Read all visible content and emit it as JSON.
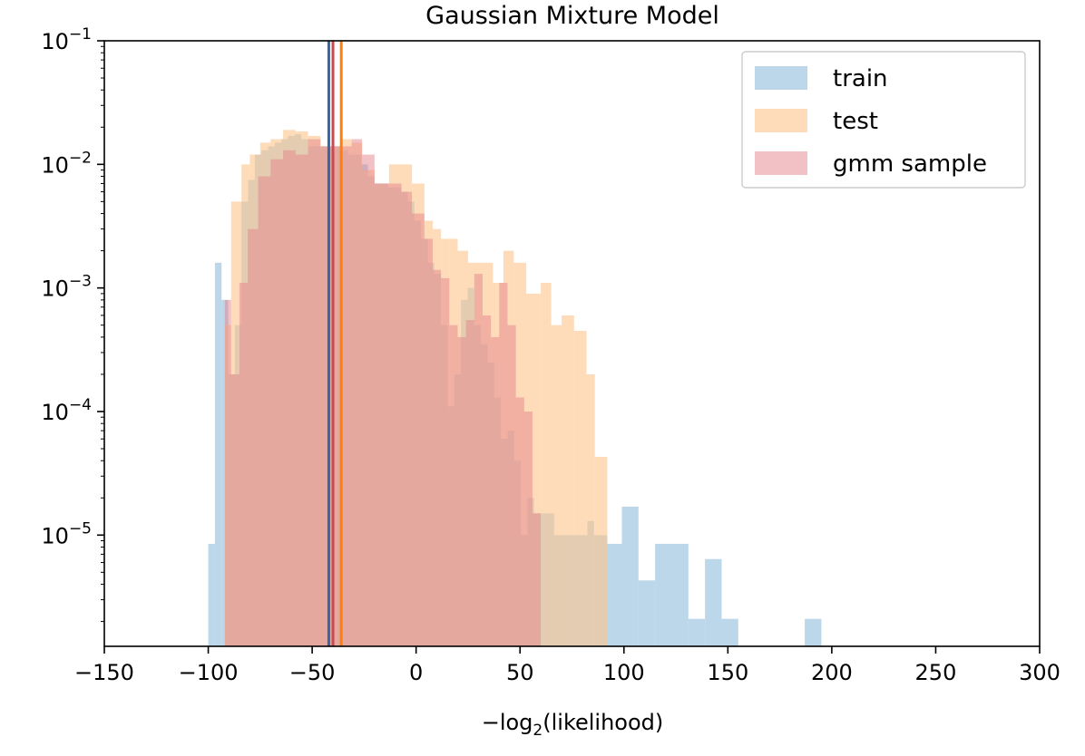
{
  "chart_data": {
    "type": "bar",
    "title": "Gaussian Mixture Model",
    "xlabel_prefix": "−log",
    "xlabel_sub": "2",
    "xlabel_suffix": "(likelihood)",
    "xlim": [
      -150,
      300
    ],
    "ylim_log10": [
      -5.9,
      -1
    ],
    "log_scale_y": true,
    "grid": false,
    "legend_position": "top-right",
    "x_ticks": [
      -150,
      -100,
      -50,
      0,
      50,
      100,
      150,
      200,
      250,
      300
    ],
    "x_tick_labels": [
      "−150",
      "−100",
      "−50",
      "0",
      "50",
      "100",
      "150",
      "200",
      "250",
      "300"
    ],
    "y_ticks": [
      {
        "base": "10",
        "exp": "−1",
        "value": -1
      },
      {
        "base": "10",
        "exp": "−2",
        "value": -2
      },
      {
        "base": "10",
        "exp": "−3",
        "value": -3
      },
      {
        "base": "10",
        "exp": "−4",
        "value": -4
      },
      {
        "base": "10",
        "exp": "−5",
        "value": -5
      }
    ],
    "series": [
      {
        "name": "train",
        "color": "#a6c9e3",
        "opacity": 0.75,
        "line_color": "#3a64a8",
        "line_x": -42,
        "bins": [
          [
            -100,
            -96.8,
            8.5e-06
          ],
          [
            -96.8,
            -93.6,
            0.0016
          ],
          [
            -93.6,
            -90.4,
            0.0008
          ],
          [
            -90.4,
            -87.2,
            0.0002
          ],
          [
            -87.2,
            -84.0,
            0.0005
          ],
          [
            -84.0,
            -80.8,
            0.005
          ],
          [
            -80.8,
            -77.6,
            0.0075
          ],
          [
            -77.6,
            -74.4,
            0.012
          ],
          [
            -74.4,
            -71.2,
            0.013
          ],
          [
            -71.2,
            -68.0,
            0.014
          ],
          [
            -68.0,
            -64.8,
            0.015
          ],
          [
            -64.8,
            -61.6,
            0.016
          ],
          [
            -61.6,
            -58.4,
            0.017
          ],
          [
            -58.4,
            -55.2,
            0.0175
          ],
          [
            -55.2,
            -52.0,
            0.016
          ],
          [
            -52.0,
            -48.8,
            0.014
          ],
          [
            -48.8,
            -45.6,
            0.014
          ],
          [
            -45.6,
            -42.4,
            0.014
          ],
          [
            -42.4,
            -39.2,
            0.014
          ],
          [
            -39.2,
            -36.0,
            0.014
          ],
          [
            -36.0,
            -32.8,
            0.013
          ],
          [
            -32.8,
            -29.6,
            0.012
          ],
          [
            -29.6,
            -26.4,
            0.012
          ],
          [
            -26.4,
            -23.2,
            0.01
          ],
          [
            -23.2,
            -20.0,
            0.008
          ],
          [
            -20.0,
            -16.8,
            0.007
          ],
          [
            -16.8,
            -13.6,
            0.007
          ],
          [
            -13.6,
            -10.4,
            0.0065
          ],
          [
            -10.4,
            -7.2,
            0.0065
          ],
          [
            -7.2,
            -4.0,
            0.006
          ],
          [
            -4.0,
            -0.8,
            0.005
          ],
          [
            -0.8,
            2.4,
            0.0035
          ],
          [
            2.4,
            5.6,
            0.0025
          ],
          [
            5.6,
            8.8,
            0.0016
          ],
          [
            8.8,
            12.0,
            0.0013
          ],
          [
            12.0,
            15.2,
            0.0005
          ],
          [
            15.2,
            18.4,
            0.00011
          ],
          [
            18.4,
            21.6,
            0.0002
          ],
          [
            21.6,
            24.8,
            0.0008
          ],
          [
            24.8,
            28.0,
            0.001
          ],
          [
            28.0,
            31.2,
            0.0005
          ],
          [
            31.2,
            34.4,
            0.00035
          ],
          [
            34.4,
            37.6,
            0.00025
          ],
          [
            37.6,
            40.8,
            0.00013
          ],
          [
            40.8,
            44.0,
            6e-05
          ],
          [
            44.0,
            47.2,
            7e-05
          ],
          [
            47.2,
            50.4,
            4e-05
          ],
          [
            50.4,
            53.6,
            1e-05
          ],
          [
            53.6,
            56.8,
            2e-05
          ],
          [
            56.8,
            60.0,
            1.5e-05
          ],
          [
            60.0,
            66.4,
            1.5e-05
          ],
          [
            66.4,
            72.8,
            1e-05
          ],
          [
            72.8,
            82.4,
            1e-05
          ],
          [
            82.4,
            85.6,
            1.3e-05
          ],
          [
            85.6,
            92.0,
            1e-05
          ],
          [
            92.0,
            99.0,
            8.5e-06
          ],
          [
            99.0,
            107.0,
            1.7e-05
          ],
          [
            107.0,
            115.0,
            4.3e-06
          ],
          [
            115.0,
            131.0,
            8.5e-06
          ],
          [
            131.0,
            139.0,
            2.1e-06
          ],
          [
            139.0,
            147.0,
            6.4e-06
          ],
          [
            147.0,
            155.0,
            2.1e-06
          ],
          [
            187.0,
            195.0,
            2.1e-06
          ]
        ]
      },
      {
        "name": "test",
        "color": "#ffc48a",
        "opacity": 0.6,
        "line_color": "#ff7f0e",
        "line_x": -36,
        "bins": [
          [
            -92,
            -89,
            0.0005
          ],
          [
            -89,
            -84,
            0.005
          ],
          [
            -84,
            -80,
            0.01
          ],
          [
            -80,
            -75,
            0.012
          ],
          [
            -75,
            -70,
            0.015
          ],
          [
            -70,
            -64,
            0.016
          ],
          [
            -64,
            -58,
            0.019
          ],
          [
            -58,
            -52,
            0.0185
          ],
          [
            -52,
            -46,
            0.017
          ],
          [
            -46,
            -41,
            0.014
          ],
          [
            -41,
            -36,
            0.014
          ],
          [
            -36,
            -31,
            0.016
          ],
          [
            -31,
            -26,
            0.015
          ],
          [
            -26,
            -20,
            0.009
          ],
          [
            -20,
            -13,
            0.007
          ],
          [
            -13,
            -7,
            0.01
          ],
          [
            -7,
            -2,
            0.01
          ],
          [
            -2,
            4,
            0.007
          ],
          [
            4,
            8,
            0.0035
          ],
          [
            8,
            12,
            0.003
          ],
          [
            12,
            16,
            0.0025
          ],
          [
            16,
            20,
            0.0025
          ],
          [
            20,
            25,
            0.002
          ],
          [
            25,
            30,
            0.0016
          ],
          [
            30,
            37,
            0.0016
          ],
          [
            37,
            42,
            0.0011
          ],
          [
            42,
            47,
            0.002
          ],
          [
            47,
            53,
            0.0016
          ],
          [
            53,
            60,
            0.0009
          ],
          [
            60,
            65,
            0.0011
          ],
          [
            65,
            70,
            0.0005
          ],
          [
            70,
            76,
            0.0006
          ],
          [
            76,
            82,
            0.00045
          ],
          [
            82,
            86,
            0.0002
          ],
          [
            86,
            92,
            4.3e-05
          ]
        ]
      },
      {
        "name": "gmm sample",
        "color": "#e3848b",
        "opacity": 0.5,
        "line_color": "#c84a52",
        "line_x": -40,
        "bins": [
          [
            -92,
            -89,
            0.0008
          ],
          [
            -89,
            -85,
            0.0002
          ],
          [
            -85,
            -81,
            0.0011
          ],
          [
            -81,
            -76,
            0.003
          ],
          [
            -76,
            -70,
            0.008
          ],
          [
            -70,
            -64,
            0.011
          ],
          [
            -64,
            -58,
            0.013
          ],
          [
            -58,
            -52,
            0.012
          ],
          [
            -52,
            -46,
            0.016
          ],
          [
            -46,
            -41,
            0.014
          ],
          [
            -41,
            -36,
            0.014
          ],
          [
            -36,
            -31,
            0.014
          ],
          [
            -31,
            -26,
            0.016
          ],
          [
            -26,
            -20,
            0.012
          ],
          [
            -20,
            -13,
            0.007
          ],
          [
            -13,
            -7,
            0.007
          ],
          [
            -7,
            -2,
            0.006
          ],
          [
            -2,
            4,
            0.004
          ],
          [
            4,
            8,
            0.0025
          ],
          [
            8,
            12,
            0.0014
          ],
          [
            12,
            16,
            0.0012
          ],
          [
            16,
            20,
            0.0005
          ],
          [
            20,
            24,
            0.0004
          ],
          [
            24,
            28,
            0.00055
          ],
          [
            28,
            32,
            0.0013
          ],
          [
            32,
            36,
            0.0006
          ],
          [
            36,
            40,
            0.0004
          ],
          [
            40,
            44,
            0.0011
          ],
          [
            44,
            48,
            0.0005
          ],
          [
            48,
            52,
            0.00013
          ],
          [
            52,
            56,
            0.0001
          ],
          [
            56,
            60,
            1.5e-05
          ]
        ]
      }
    ]
  }
}
